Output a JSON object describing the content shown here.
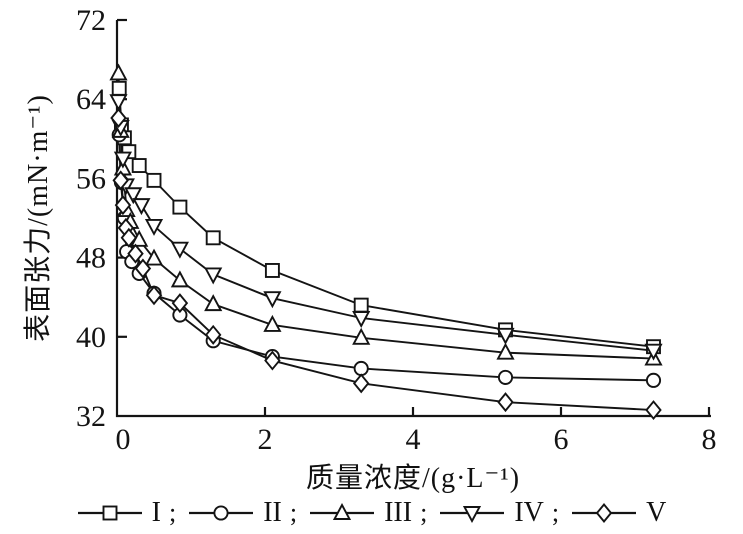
{
  "figure": {
    "background": "#ffffff",
    "ink": "#141414"
  },
  "chart_data": {
    "type": "line",
    "title": "",
    "xlabel": "质量浓度/(g·L⁻¹)",
    "ylabel": "表面张力/(mN·m⁻¹)",
    "xlim": [
      0,
      8
    ],
    "ylim": [
      32,
      72
    ],
    "x_ticks": [
      0,
      2,
      4,
      6,
      8
    ],
    "y_ticks": [
      32,
      40,
      48,
      56,
      64,
      72
    ],
    "grid": false,
    "legend_position": "bottom",
    "series": [
      {
        "name": "I",
        "marker": "square",
        "points": [
          [
            0.03,
            65.1
          ],
          [
            0.06,
            61.4
          ],
          [
            0.1,
            60.1
          ],
          [
            0.16,
            58.7
          ],
          [
            0.3,
            57.3
          ],
          [
            0.5,
            55.8
          ],
          [
            0.85,
            53.1
          ],
          [
            1.3,
            50.0
          ],
          [
            2.1,
            46.7
          ],
          [
            3.3,
            43.2
          ],
          [
            5.25,
            40.7
          ],
          [
            7.25,
            39.0
          ]
        ]
      },
      {
        "name": "II",
        "marker": "circle",
        "points": [
          [
            0.03,
            60.4
          ],
          [
            0.06,
            55.6
          ],
          [
            0.1,
            52.0
          ],
          [
            0.13,
            48.6
          ],
          [
            0.2,
            47.6
          ],
          [
            0.3,
            46.4
          ],
          [
            0.5,
            44.4
          ],
          [
            0.85,
            42.2
          ],
          [
            1.3,
            39.6
          ],
          [
            2.1,
            38.0
          ],
          [
            3.3,
            36.8
          ],
          [
            5.25,
            35.9
          ],
          [
            7.25,
            35.6
          ]
        ]
      },
      {
        "name": "III",
        "marker": "triangle-up",
        "points": [
          [
            0.02,
            66.6
          ],
          [
            0.05,
            60.8
          ],
          [
            0.08,
            57.0
          ],
          [
            0.13,
            52.8
          ],
          [
            0.18,
            51.6
          ],
          [
            0.3,
            49.8
          ],
          [
            0.5,
            47.9
          ],
          [
            0.85,
            45.7
          ],
          [
            1.3,
            43.3
          ],
          [
            2.1,
            41.2
          ],
          [
            3.3,
            39.9
          ],
          [
            5.25,
            38.4
          ],
          [
            7.25,
            37.8
          ]
        ]
      },
      {
        "name": "IV",
        "marker": "triangle-down",
        "points": [
          [
            0.02,
            63.8
          ],
          [
            0.05,
            61.2
          ],
          [
            0.08,
            58.0
          ],
          [
            0.12,
            55.3
          ],
          [
            0.22,
            54.4
          ],
          [
            0.33,
            53.3
          ],
          [
            0.5,
            51.2
          ],
          [
            0.85,
            48.9
          ],
          [
            1.3,
            46.3
          ],
          [
            2.1,
            43.9
          ],
          [
            3.3,
            41.9
          ],
          [
            5.25,
            40.2
          ],
          [
            7.25,
            38.6
          ]
        ]
      },
      {
        "name": "V",
        "marker": "diamond",
        "points": [
          [
            0.02,
            62.1
          ],
          [
            0.05,
            55.8
          ],
          [
            0.08,
            53.3
          ],
          [
            0.12,
            51.0
          ],
          [
            0.16,
            50.0
          ],
          [
            0.25,
            48.4
          ],
          [
            0.35,
            46.9
          ],
          [
            0.5,
            44.2
          ],
          [
            0.85,
            43.4
          ],
          [
            1.3,
            40.2
          ],
          [
            2.1,
            37.6
          ],
          [
            3.3,
            35.3
          ],
          [
            5.25,
            33.4
          ],
          [
            7.25,
            32.6
          ]
        ]
      }
    ]
  },
  "legend": {
    "separator": ";",
    "items": [
      {
        "label": "I",
        "marker": "square"
      },
      {
        "label": "II",
        "marker": "circle"
      },
      {
        "label": "III",
        "marker": "triangle-up"
      },
      {
        "label": "IV",
        "marker": "triangle-down"
      },
      {
        "label": "V",
        "marker": "diamond"
      }
    ]
  }
}
